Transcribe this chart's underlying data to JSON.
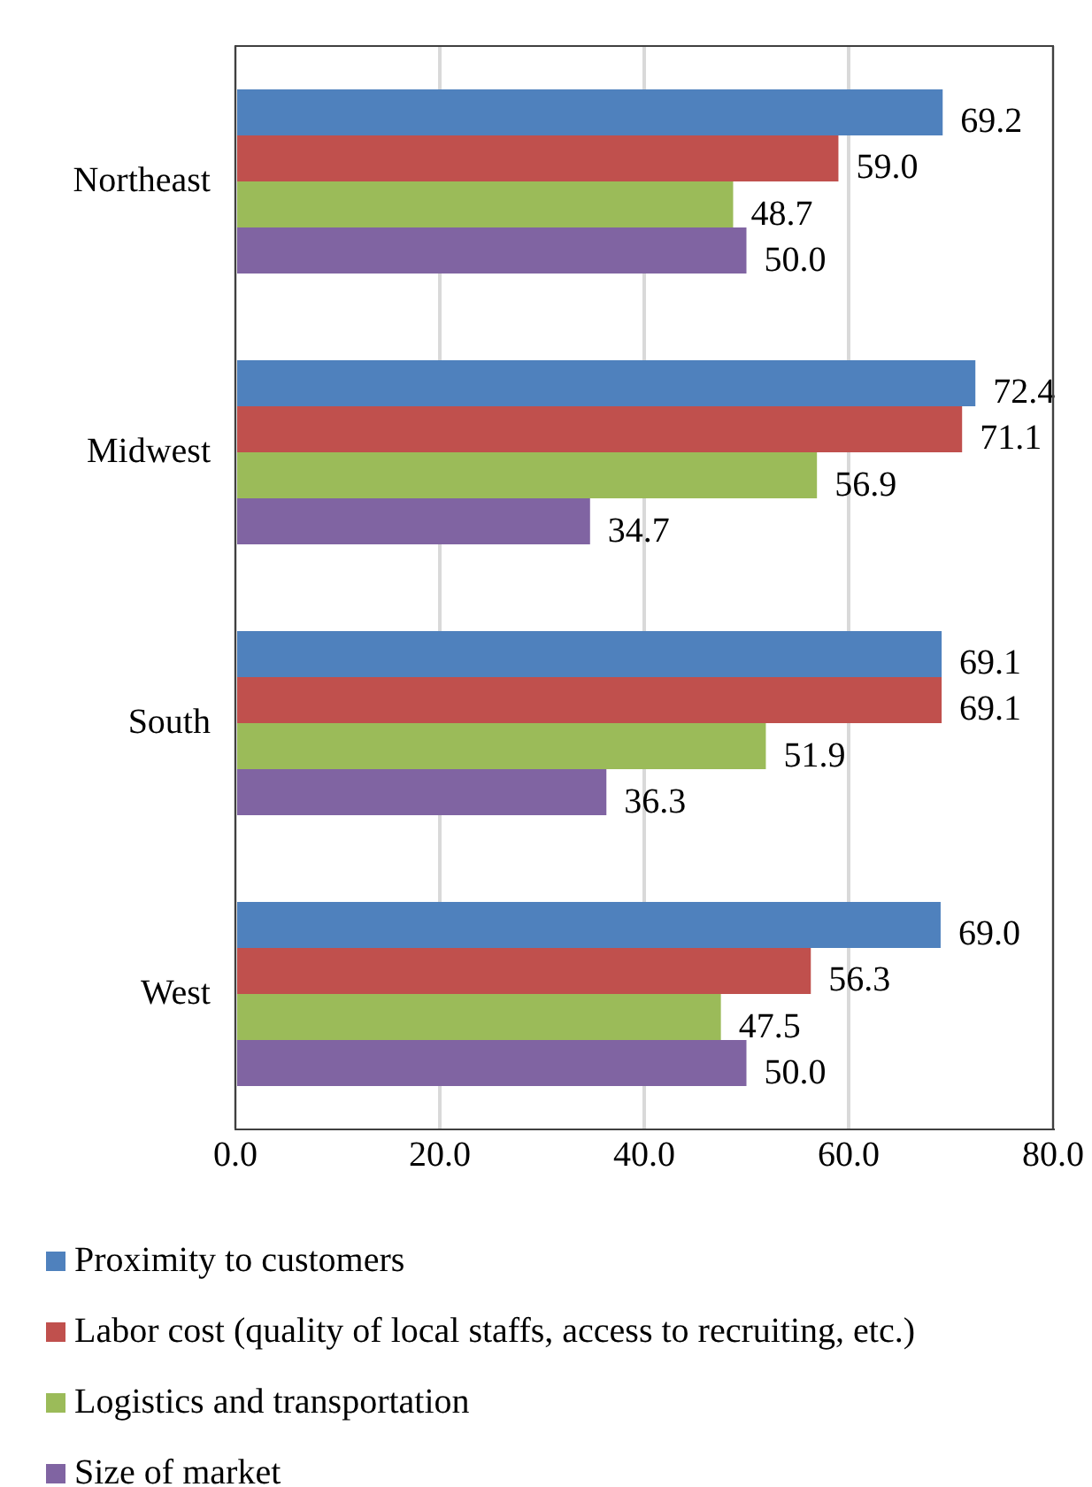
{
  "chart_data": {
    "type": "bar",
    "orientation": "horizontal",
    "categories": [
      "Northeast",
      "Midwest",
      "South",
      "West"
    ],
    "series": [
      {
        "name": "Proximity to customers",
        "color": "#4f81bd",
        "values": [
          69.2,
          72.4,
          69.1,
          69.0
        ],
        "value_labels": [
          "69.2",
          "72.4",
          "69.1",
          "69.0"
        ]
      },
      {
        "name": "Labor cost (quality of local staffs, access to recruiting, etc.)",
        "color": "#c0504d",
        "values": [
          59.0,
          71.1,
          69.1,
          56.3
        ],
        "value_labels": [
          "59.0",
          "71.1",
          "69.1",
          "56.3"
        ]
      },
      {
        "name": "Logistics and transportation",
        "color": "#9bbb59",
        "values": [
          48.7,
          56.9,
          51.9,
          47.5
        ],
        "value_labels": [
          "48.7",
          "56.9",
          "51.9",
          "47.5"
        ]
      },
      {
        "name": "Size of market",
        "color": "#8064a2",
        "values": [
          50.0,
          34.7,
          36.3,
          50.0
        ],
        "value_labels": [
          "50.0",
          "34.7",
          "36.3",
          "50.0"
        ]
      }
    ],
    "xlim": [
      0,
      80
    ],
    "xticks": [
      {
        "value": 0,
        "label": "0.0"
      },
      {
        "value": 20,
        "label": "20.0"
      },
      {
        "value": 40,
        "label": "40.0"
      },
      {
        "value": 60,
        "label": "60.0"
      },
      {
        "value": 80,
        "label": "80.0"
      }
    ],
    "grid": "x",
    "legend": "bottom"
  }
}
